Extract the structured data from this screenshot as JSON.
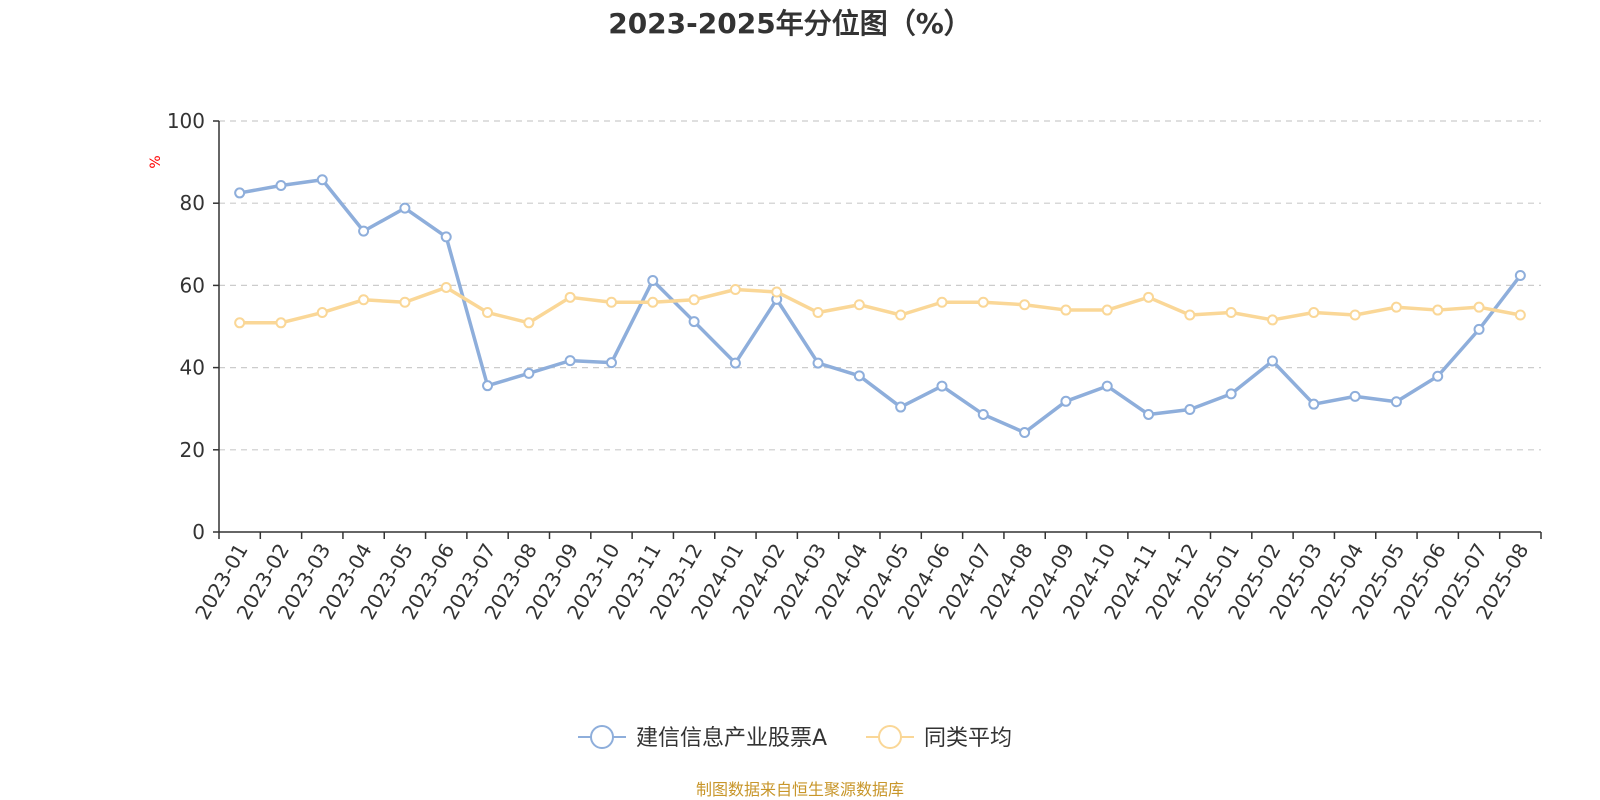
{
  "colors": {
    "series1": "#8eaedb",
    "series2": "#fad797",
    "grid": "#cccccc",
    "axis": "#333333",
    "unit": "#ff0000",
    "source": "#c8962a"
  },
  "source_text": "制图数据来自恒生聚源数据库",
  "chart_data": {
    "type": "line",
    "title": "2023-2025年分位图（%）",
    "ylabel": "%",
    "xlabel": "",
    "ylim": [
      0,
      100
    ],
    "yticks": [
      0,
      20,
      40,
      60,
      80,
      100
    ],
    "grid": true,
    "legend_position": "bottom-center",
    "categories": [
      "2023-01",
      "2023-02",
      "2023-03",
      "2023-04",
      "2023-05",
      "2023-06",
      "2023-07",
      "2023-08",
      "2023-09",
      "2023-10",
      "2023-11",
      "2023-12",
      "2024-01",
      "2024-02",
      "2024-03",
      "2024-04",
      "2024-05",
      "2024-06",
      "2024-07",
      "2024-08",
      "2024-09",
      "2024-10",
      "2024-11",
      "2024-12",
      "2025-01",
      "2025-02",
      "2025-03",
      "2025-04",
      "2025-05",
      "2025-06",
      "2025-07",
      "2025-08"
    ],
    "series": [
      {
        "name": "建信信息产业股票A",
        "values": [
          82.5,
          84.3,
          85.7,
          73.2,
          78.8,
          71.8,
          35.6,
          38.6,
          41.7,
          41.2,
          61.2,
          51.2,
          41.1,
          56.6,
          41.1,
          38.0,
          30.4,
          35.5,
          28.6,
          24.2,
          31.8,
          35.5,
          28.6,
          29.8,
          33.6,
          41.6,
          31.1,
          33.0,
          31.7,
          37.9,
          49.3,
          62.4
        ]
      },
      {
        "name": "同类平均",
        "values": [
          50.9,
          50.9,
          53.4,
          56.5,
          55.9,
          59.5,
          53.4,
          50.9,
          57.1,
          55.9,
          55.9,
          56.5,
          59.0,
          58.4,
          53.4,
          55.3,
          52.8,
          55.9,
          55.9,
          55.3,
          54.0,
          54.0,
          57.1,
          52.8,
          53.4,
          51.6,
          53.4,
          52.8,
          54.7,
          54.0,
          54.7,
          52.8
        ]
      }
    ]
  }
}
